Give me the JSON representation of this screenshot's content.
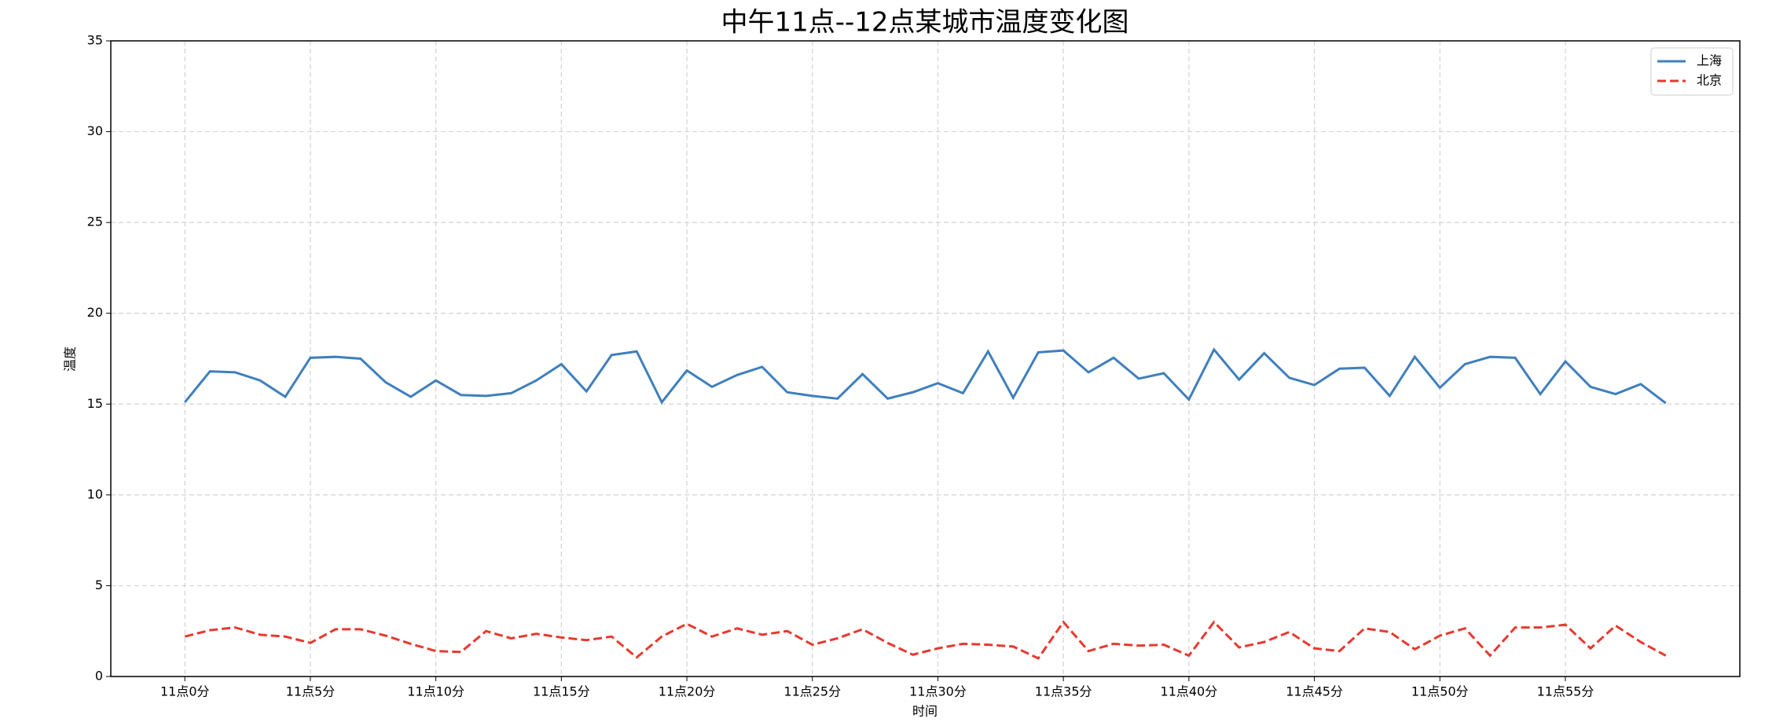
{
  "chart_data": {
    "type": "line",
    "title": "中午11点--12点某城市温度变化图",
    "x_label": "时间",
    "y_label": "温度",
    "x": [
      0,
      1,
      2,
      3,
      4,
      5,
      6,
      7,
      8,
      9,
      10,
      11,
      12,
      13,
      14,
      15,
      16,
      17,
      18,
      19,
      20,
      21,
      22,
      23,
      24,
      25,
      26,
      27,
      28,
      29,
      30,
      31,
      32,
      33,
      34,
      35,
      36,
      37,
      38,
      39,
      40,
      41,
      42,
      43,
      44,
      45,
      46,
      47,
      48,
      49,
      50,
      51,
      52,
      53,
      54,
      55,
      56,
      57,
      58,
      59
    ],
    "series": [
      {
        "name": "上海",
        "color": "#3f7fbd",
        "dash": "solid",
        "values": [
          15.1,
          16.8,
          16.75,
          16.3,
          15.4,
          17.55,
          17.6,
          17.5,
          16.2,
          15.4,
          16.3,
          15.5,
          15.45,
          15.6,
          16.3,
          17.2,
          15.7,
          17.7,
          17.9,
          15.1,
          16.85,
          15.95,
          16.6,
          17.05,
          15.65,
          15.45,
          15.3,
          16.65,
          15.3,
          15.65,
          16.15,
          15.6,
          17.9,
          15.35,
          17.85,
          17.95,
          16.75,
          17.55,
          16.4,
          16.7,
          15.25,
          18.0,
          16.35,
          17.8,
          16.45,
          16.05,
          16.95,
          17.0,
          15.45,
          17.6,
          15.9,
          17.2,
          17.6,
          17.55,
          15.55,
          17.35,
          15.95,
          15.55,
          16.1,
          15.05
        ]
      },
      {
        "name": "北京",
        "color": "#e8392e",
        "dash": "dashed",
        "values": [
          2.2,
          2.55,
          2.7,
          2.3,
          2.2,
          1.85,
          2.6,
          2.6,
          2.25,
          1.8,
          1.4,
          1.35,
          2.5,
          2.1,
          2.35,
          2.15,
          2.0,
          2.2,
          1.05,
          2.2,
          2.9,
          2.2,
          2.65,
          2.3,
          2.5,
          1.75,
          2.1,
          2.6,
          1.85,
          1.2,
          1.55,
          1.8,
          1.75,
          1.65,
          1.0,
          3.0,
          1.4,
          1.8,
          1.7,
          1.75,
          1.15,
          3.0,
          1.6,
          1.9,
          2.45,
          1.55,
          1.4,
          2.65,
          2.45,
          1.5,
          2.25,
          2.65,
          1.15,
          2.7,
          2.7,
          2.85,
          1.55,
          2.8,
          1.9,
          1.15
        ]
      }
    ],
    "xlim": [
      -2.95,
      61.95
    ],
    "xticks": [
      {
        "value": 0,
        "label": "11点0分"
      },
      {
        "value": 5,
        "label": "11点5分"
      },
      {
        "value": 10,
        "label": "11点10分"
      },
      {
        "value": 15,
        "label": "11点15分"
      },
      {
        "value": 20,
        "label": "11点20分"
      },
      {
        "value": 25,
        "label": "11点25分"
      },
      {
        "value": 30,
        "label": "11点30分"
      },
      {
        "value": 35,
        "label": "11点35分"
      },
      {
        "value": 40,
        "label": "11点40分"
      },
      {
        "value": 45,
        "label": "11点45分"
      },
      {
        "value": 50,
        "label": "11点50分"
      },
      {
        "value": 55,
        "label": "11点55分"
      }
    ],
    "ylim": [
      0,
      35
    ],
    "yticks": [
      0,
      5,
      10,
      15,
      20,
      25,
      30,
      35
    ],
    "grid": true,
    "legend": "upper right"
  }
}
